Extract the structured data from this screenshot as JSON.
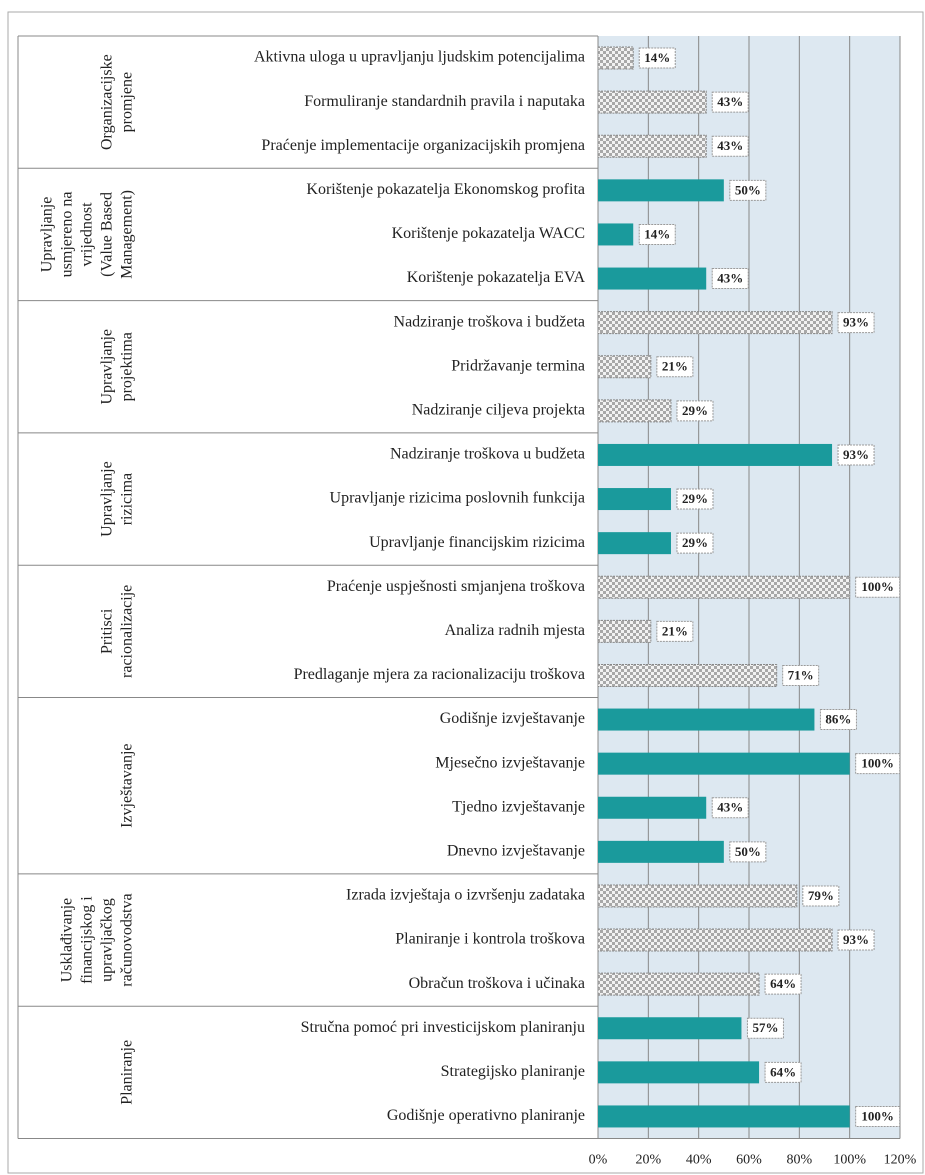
{
  "chart_data": {
    "type": "grouped-bar-horizontal",
    "xlim": [
      0,
      120
    ],
    "xticks": [
      {
        "value": 0,
        "label": "0%"
      },
      {
        "value": 20,
        "label": "20%"
      },
      {
        "value": 40,
        "label": "40%"
      },
      {
        "value": 60,
        "label": "60%"
      },
      {
        "value": 80,
        "label": "80%"
      },
      {
        "value": 100,
        "label": "100%"
      },
      {
        "value": 120,
        "label": "120%"
      }
    ],
    "grid": true,
    "groups": [
      {
        "name": [
          "Organizacijske",
          "promjene"
        ],
        "fill": "pattern",
        "categories": [
          "Aktivna uloga u upravljanju ljudskim potencijalima",
          "Formuliranje standardnih pravila i naputaka",
          "Praćenje implementacije organizacijskih promjena"
        ],
        "values": [
          14,
          43,
          43
        ],
        "value_labels": [
          "14%",
          "43%",
          "43%"
        ]
      },
      {
        "name": [
          "Upravljanje",
          "usmjereno na",
          "vrijednost",
          "(Value Based",
          "Management)"
        ],
        "fill": "#1a9a9c",
        "categories": [
          "Korištenje pokazatelja Ekonomskog profita",
          "Korištenje pokazatelja WACC",
          "Korištenje pokazatelja EVA"
        ],
        "values": [
          50,
          14,
          43
        ],
        "value_labels": [
          "50%",
          "14%",
          "43%"
        ]
      },
      {
        "name": [
          "Upravljanje",
          "projektima"
        ],
        "fill": "pattern",
        "categories": [
          "Nadziranje troškova i budžeta",
          "Pridržavanje termina",
          "Nadziranje ciljeva projekta"
        ],
        "values": [
          93,
          21,
          29
        ],
        "value_labels": [
          "93%",
          "21%",
          "29%"
        ]
      },
      {
        "name": [
          "Upravljanje",
          "rizicima"
        ],
        "fill": "#1a9a9c",
        "categories": [
          "Nadziranje troškova u budžeta",
          "Upravljanje rizicima poslovnih funkcija",
          "Upravljanje financijskim rizicima"
        ],
        "values": [
          93,
          29,
          29
        ],
        "value_labels": [
          "93%",
          "29%",
          "29%"
        ]
      },
      {
        "name": [
          "Pritisci",
          "racionalizacije"
        ],
        "fill": "pattern",
        "categories": [
          "Praćenje uspješnosti smjanjena troškova",
          "Analiza radnih mjesta",
          "Predlaganje mjera za racionalizaciju troškova"
        ],
        "values": [
          100,
          21,
          71
        ],
        "value_labels": [
          "100%",
          "21%",
          "71%"
        ]
      },
      {
        "name": [
          "Izvještavanje"
        ],
        "fill": "#1a9a9c",
        "categories": [
          "Godišnje izvještavanje",
          "Mjesečno izvještavanje",
          "Tjedno izvještavanje",
          "Dnevno izvještavanje"
        ],
        "values": [
          86,
          100,
          43,
          50
        ],
        "value_labels": [
          "86%",
          "100%",
          "43%",
          "50%"
        ]
      },
      {
        "name": [
          "Usklađivanje",
          "financijskog i",
          "upravljačkog",
          "računovodstva"
        ],
        "fill": "pattern",
        "categories": [
          "Izrada izvještaja o izvršenju zadataka",
          "Planiranje i kontrola troškova",
          "Obračun troškova i učinaka"
        ],
        "values": [
          79,
          93,
          64
        ],
        "value_labels": [
          "79%",
          "93%",
          "64%"
        ]
      },
      {
        "name": [
          "Planiranje"
        ],
        "fill": "#1a9a9c",
        "categories": [
          "Stručna pomoć pri investicijskom planiranju",
          "Strategijsko planiranje",
          "Godišnje operativno planiranje"
        ],
        "values": [
          57,
          64,
          100
        ],
        "value_labels": [
          "57%",
          "64%",
          "100%"
        ]
      }
    ]
  }
}
